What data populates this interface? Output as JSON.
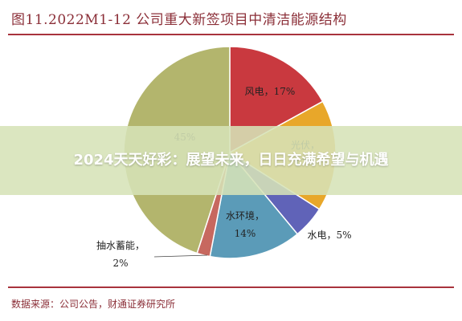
{
  "header": {
    "title": "图11.2022M1-12 公司重大新签项目中清洁能源结构"
  },
  "footer": {
    "source": "数据来源：公司公告，财通证券研究所"
  },
  "overlay": {
    "headline": "2024天天好彩：展望未来，日日充满希望与机遇"
  },
  "chart_data": {
    "type": "pie",
    "title": "",
    "slices": [
      {
        "label": "风电",
        "pct_label": "17%",
        "value": 17,
        "color": "#c9393f"
      },
      {
        "label": "光伏",
        "pct_label": "17%",
        "value": 17,
        "color": "#e8a72a"
      },
      {
        "label": "",
        "pct_label": "",
        "value": 0,
        "color": "#9ccc55"
      },
      {
        "label": "水电",
        "pct_label": "5%",
        "value": 5,
        "color": "#6063b8"
      },
      {
        "label": "水环境",
        "pct_label": "14%",
        "value": 14,
        "color": "#5b9bb8"
      },
      {
        "label": "抽水蓄能",
        "pct_label": "2%",
        "value": 2,
        "color": "#c7685f"
      },
      {
        "label": "",
        "pct_label": "45%",
        "value": 45,
        "color": "#b3b56d"
      }
    ]
  }
}
